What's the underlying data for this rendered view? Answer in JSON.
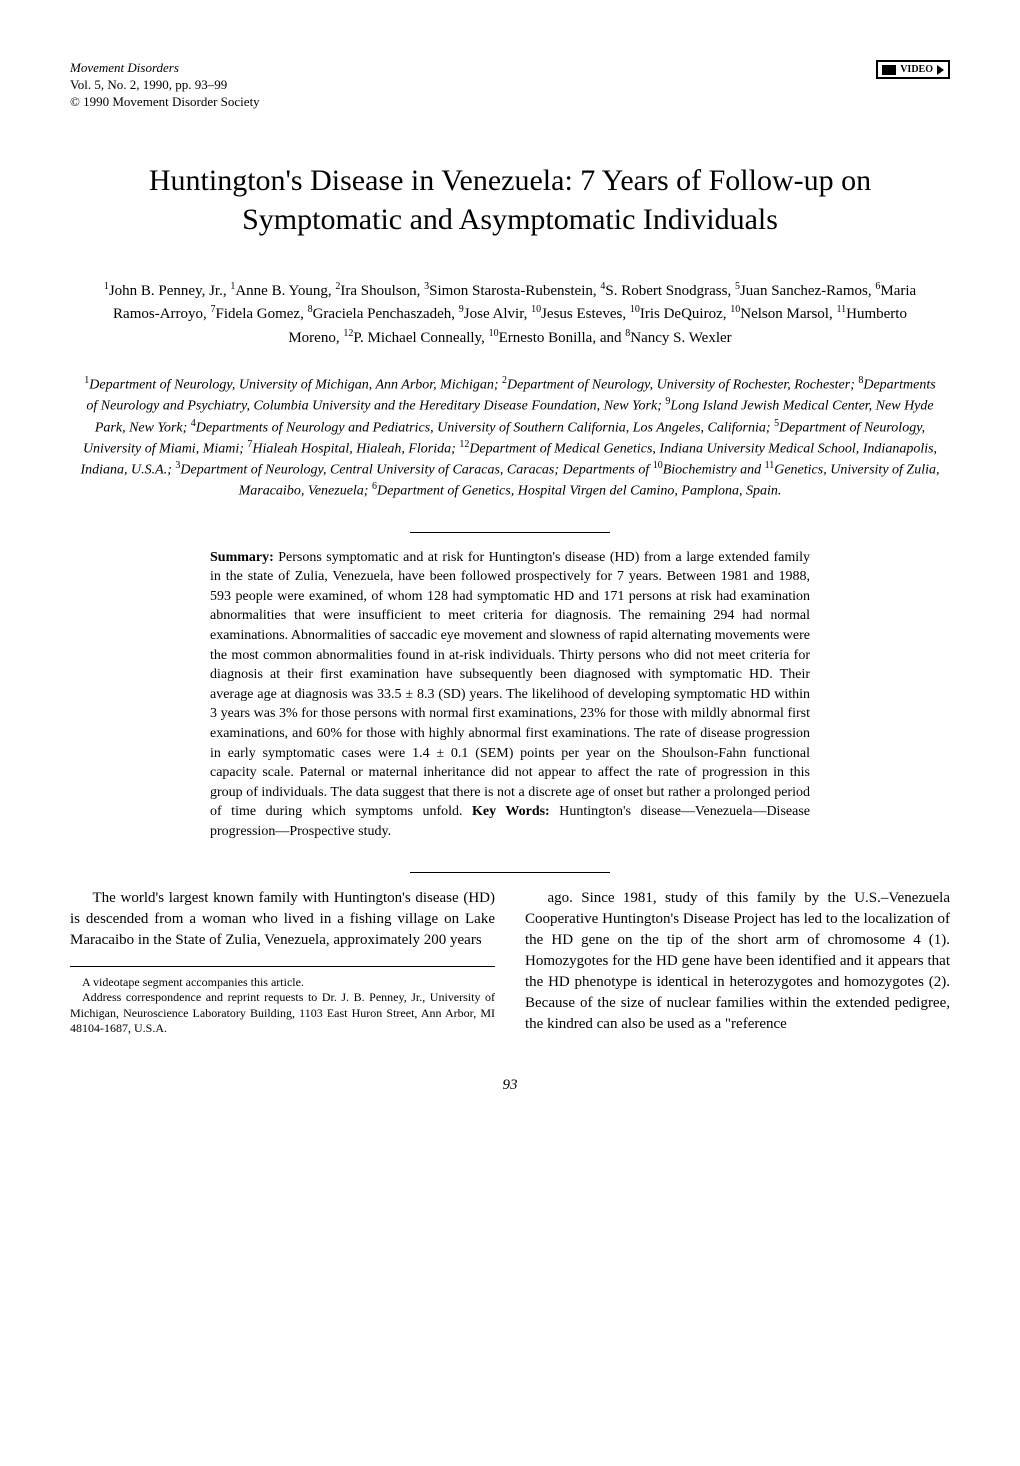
{
  "journal": {
    "name": "Movement Disorders",
    "issue": "Vol. 5, No. 2, 1990, pp. 93–99",
    "copyright": "© 1990 Movement Disorder Society"
  },
  "badge": {
    "label": "VIDEO"
  },
  "title": "Huntington's Disease in Venezuela: 7 Years of Follow-up on Symptomatic and Asymptomatic Individuals",
  "authors_html": "<sup>1</sup>John B. Penney, Jr., <sup>1</sup>Anne B. Young, <sup>2</sup>Ira Shoulson, <sup>3</sup>Simon Starosta-Rubenstein, <sup>4</sup>S. Robert Snodgrass, <sup>5</sup>Juan Sanchez-Ramos, <sup>6</sup>Maria Ramos-Arroyo, <sup>7</sup>Fidela Gomez, <sup>8</sup>Graciela Penchaszadeh, <sup>9</sup>Jose Alvir, <sup>10</sup>Jesus Esteves, <sup>10</sup>Iris DeQuiroz, <sup>10</sup>Nelson Marsol, <sup>11</sup>Humberto Moreno, <sup>12</sup>P. Michael Conneally, <sup>10</sup>Ernesto Bonilla, and <sup>8</sup>Nancy S. Wexler",
  "affiliations_html": "<sup>1</sup>Department of Neurology, University of Michigan, Ann Arbor, Michigan; <sup>2</sup>Department of Neurology, University of Rochester, Rochester; <sup>8</sup>Departments of Neurology and Psychiatry, Columbia University and the Hereditary Disease Foundation, New York; <sup>9</sup>Long Island Jewish Medical Center, New Hyde Park, New York; <sup>4</sup>Departments of Neurology and Pediatrics, University of Southern California, Los Angeles, California; <sup>5</sup>Department of Neurology, University of Miami, Miami; <sup>7</sup>Hialeah Hospital, Hialeah, Florida; <sup>12</sup>Department of Medical Genetics, Indiana University Medical School, Indianapolis, Indiana, U.S.A.; <sup>3</sup>Department of Neurology, Central University of Caracas, Caracas; Departments of <sup>10</sup>Biochemistry and <sup>11</sup>Genetics, University of Zulia, Maracaibo, Venezuela; <sup>6</sup>Department of Genetics, Hospital Virgen del Camino, Pamplona, Spain.",
  "summary": {
    "label": "Summary:",
    "text": " Persons symptomatic and at risk for Huntington's disease (HD) from a large extended family in the state of Zulia, Venezuela, have been followed prospectively for 7 years. Between 1981 and 1988, 593 people were examined, of whom 128 had symptomatic HD and 171 persons at risk had examination abnormalities that were insufficient to meet criteria for diagnosis. The remaining 294 had normal examinations. Abnormalities of saccadic eye movement and slowness of rapid alternating movements were the most common abnormalities found in at-risk individuals. Thirty persons who did not meet criteria for diagnosis at their first examination have subsequently been diagnosed with symptomatic HD. Their average age at diagnosis was 33.5 ± 8.3 (SD) years. The likelihood of developing symptomatic HD within 3 years was 3% for those persons with normal first examinations, 23% for those with mildly abnormal first examinations, and 60% for those with highly abnormal first examinations. The rate of disease progression in early symptomatic cases were 1.4 ± 0.1 (SEM) points per year on the Shoulson-Fahn functional capacity scale. Paternal or maternal inheritance did not appear to affect the rate of progression in this group of individuals. The data suggest that there is not a discrete age of onset but rather a prolonged period of time during which symptoms unfold. ",
    "keywords_label": "Key Words:",
    "keywords": " Huntington's disease—Venezuela—Disease progression—Prospective study."
  },
  "body": {
    "col1_p1": "The world's largest known family with Huntington's disease (HD) is descended from a woman who lived in a fishing village on Lake Maracaibo in the State of Zulia, Venezuela, approximately 200 years",
    "col2_p1": "ago. Since 1981, study of this family by the U.S.–Venezuela Cooperative Huntington's Disease Project has led to the localization of the HD gene on the tip of the short arm of chromosome 4 (1). Homozygotes for the HD gene have been identified and it appears that the HD phenotype is identical in heterozygotes and homozygotes (2). Because of the size of nuclear families within the extended pedigree, the kindred can also be used as a \"reference"
  },
  "footnote": {
    "line1": "A videotape segment accompanies this article.",
    "line2": "Address correspondence and reprint requests to Dr. J. B. Penney, Jr., University of Michigan, Neuroscience Laboratory Building, 1103 East Huron Street, Ann Arbor, MI 48104-1687, U.S.A."
  },
  "page_number": "93"
}
